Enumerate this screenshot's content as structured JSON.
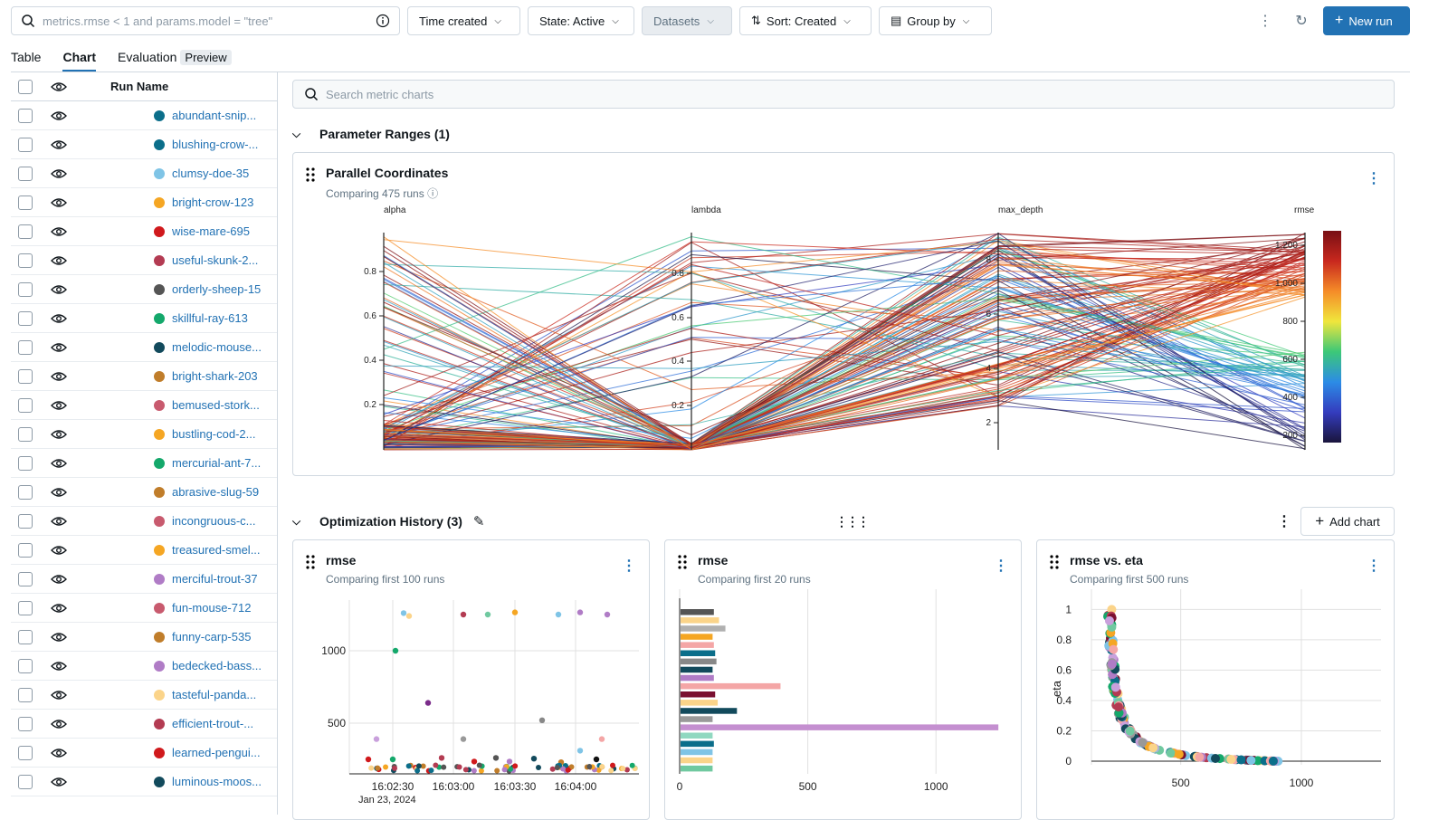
{
  "toolbar": {
    "search_placeholder": "metrics.rmse < 1 and params.model = \"tree\"",
    "time_created": "Time created",
    "state": "State: Active",
    "datasets": "Datasets",
    "sort": "Sort: Created",
    "group_by": "Group by",
    "new_run": "New run"
  },
  "tabs": [
    {
      "label": "Table"
    },
    {
      "label": "Chart",
      "active": true
    },
    {
      "label": "Evaluation",
      "badge": "Preview"
    }
  ],
  "runs_table": {
    "header": "Run Name",
    "rows": [
      {
        "name": "abundant-snip...",
        "color": "#0b6e8a"
      },
      {
        "name": "blushing-crow-...",
        "color": "#0b6e8a"
      },
      {
        "name": "clumsy-doe-35",
        "color": "#7fc4e6"
      },
      {
        "name": "bright-crow-123",
        "color": "#f5a623"
      },
      {
        "name": "wise-mare-695",
        "color": "#d0191c"
      },
      {
        "name": "useful-skunk-2...",
        "color": "#b33b52"
      },
      {
        "name": "orderly-sheep-15",
        "color": "#555555"
      },
      {
        "name": "skillful-ray-613",
        "color": "#14a86b"
      },
      {
        "name": "melodic-mouse...",
        "color": "#124a5c"
      },
      {
        "name": "bright-shark-203",
        "color": "#c07d2a"
      },
      {
        "name": "bemused-stork...",
        "color": "#c85a6e"
      },
      {
        "name": "bustling-cod-2...",
        "color": "#f5a623"
      },
      {
        "name": "mercurial-ant-7...",
        "color": "#14a86b"
      },
      {
        "name": "abrasive-slug-59",
        "color": "#c07d2a"
      },
      {
        "name": "incongruous-c...",
        "color": "#c85a6e"
      },
      {
        "name": "treasured-smel...",
        "color": "#f5a623"
      },
      {
        "name": "merciful-trout-37",
        "color": "#b07cc6"
      },
      {
        "name": "fun-mouse-712",
        "color": "#c85a6e"
      },
      {
        "name": "funny-carp-535",
        "color": "#c07d2a"
      },
      {
        "name": "bedecked-bass...",
        "color": "#b07cc6"
      },
      {
        "name": "tasteful-panda...",
        "color": "#fbd48a"
      },
      {
        "name": "efficient-trout-...",
        "color": "#b33b52"
      },
      {
        "name": "learned-pengui...",
        "color": "#d0191c"
      },
      {
        "name": "luminous-moos...",
        "color": "#124a5c"
      }
    ]
  },
  "metric_search_placeholder": "Search metric charts",
  "sections": {
    "param_ranges": "Parameter Ranges (1)",
    "opt_history": "Optimization History (3)",
    "add_chart": "Add chart"
  },
  "parallel_chart": {
    "title": "Parallel Coordinates",
    "subtitle": "Comparing 475 runs",
    "axes": [
      {
        "name": "alpha",
        "ticks": [
          "0.8",
          "0.6",
          "0.4",
          "0.2"
        ]
      },
      {
        "name": "lambda",
        "ticks": [
          "0.8",
          "0.6",
          "0.4",
          "0.2"
        ]
      },
      {
        "name": "max_depth",
        "ticks": [
          "8",
          "6",
          "4",
          "2"
        ]
      },
      {
        "name": "rmse",
        "ticks": [
          "1,200",
          "1,000",
          "800",
          "600",
          "400",
          "200"
        ]
      }
    ]
  },
  "cards": [
    {
      "title": "rmse",
      "subtitle": "Comparing first 100 runs"
    },
    {
      "title": "rmse",
      "subtitle": "Comparing first 20 runs"
    },
    {
      "title": "rmse vs. eta",
      "subtitle": "Comparing first 500 runs"
    }
  ],
  "chart_data": [
    {
      "type": "scatter",
      "title": "rmse",
      "xlabel": "",
      "ylabel": "",
      "x_ticks": [
        "16:02:30",
        "16:03:00",
        "16:03:30",
        "16:04:00"
      ],
      "x_sublabel": "Jan 23, 2024",
      "y_ticks": [
        1000,
        500
      ],
      "ylim": [
        150,
        1350
      ],
      "points": [
        {
          "x": 0.15,
          "y": 1260,
          "c": "#7fc4e6"
        },
        {
          "x": 0.17,
          "y": 1240,
          "c": "#fbd48a"
        },
        {
          "x": 0.37,
          "y": 1250,
          "c": "#b33b52"
        },
        {
          "x": 0.46,
          "y": 1250,
          "c": "#70c9a0"
        },
        {
          "x": 0.56,
          "y": 1265,
          "c": "#f5a623"
        },
        {
          "x": 0.72,
          "y": 1250,
          "c": "#7fc4e6"
        },
        {
          "x": 0.8,
          "y": 1265,
          "c": "#b07cc6"
        },
        {
          "x": 0.9,
          "y": 1250,
          "c": "#b07cc6"
        },
        {
          "x": 0.12,
          "y": 1000,
          "c": "#14a86b"
        },
        {
          "x": 0.24,
          "y": 640,
          "c": "#7b2c8a"
        },
        {
          "x": 0.66,
          "y": 520,
          "c": "#888888"
        },
        {
          "x": 0.05,
          "y": 390,
          "c": "#c9a0dc"
        },
        {
          "x": 0.37,
          "y": 390,
          "c": "#999999"
        },
        {
          "x": 0.88,
          "y": 390,
          "c": "#f4a6a6"
        },
        {
          "x": 0.8,
          "y": 310,
          "c": "#7fc4e6"
        },
        {
          "x": 0.02,
          "y": 250,
          "c": "#d0191c"
        },
        {
          "x": 0.11,
          "y": 250,
          "c": "#14a86b"
        },
        {
          "x": 0.29,
          "y": 260,
          "c": "#b33b52"
        },
        {
          "x": 0.49,
          "y": 260,
          "c": "#555555"
        },
        {
          "x": 0.63,
          "y": 255,
          "c": "#124a5c"
        },
        {
          "x": 0.86,
          "y": 250,
          "c": "#111111"
        },
        {
          "x": 0.41,
          "y": 235,
          "c": "#d0191c"
        },
        {
          "x": 0.54,
          "y": 235,
          "c": "#b07cc6"
        },
        {
          "x": 0.73,
          "y": 230,
          "c": "#c07d2a"
        }
      ]
    },
    {
      "type": "bar",
      "title": "rmse",
      "xlabel": "",
      "ylabel": "",
      "x_ticks": [
        0,
        500,
        1000
      ],
      "xlim": [
        0,
        1250
      ],
      "values": [
        130,
        150,
        175,
        125,
        130,
        135,
        140,
        125,
        130,
        390,
        135,
        145,
        220,
        125,
        1240,
        125,
        130,
        125,
        125,
        125
      ],
      "colors": [
        "#555555",
        "#fbd48a",
        "#b0b0b0",
        "#f5a623",
        "#f4a6a6",
        "#0b6e8a",
        "#888888",
        "#124a5c",
        "#b07cc6",
        "#f4a6a6",
        "#7a1030",
        "#fbd48a",
        "#124a5c",
        "#999999",
        "#c48fd0",
        "#90d8c0",
        "#0b6e8a",
        "#7fc4e6",
        "#fbd48a",
        "#70c9a0"
      ]
    },
    {
      "type": "scatter",
      "title": "rmse vs. eta",
      "xlabel": "",
      "ylabel": "eta",
      "x_ticks": [
        500,
        1000
      ],
      "y_ticks": [
        0,
        0.2,
        0.4,
        0.6,
        0.8,
        1
      ],
      "xlim": [
        130,
        1330
      ],
      "ylim": [
        0,
        1.05
      ]
    }
  ]
}
